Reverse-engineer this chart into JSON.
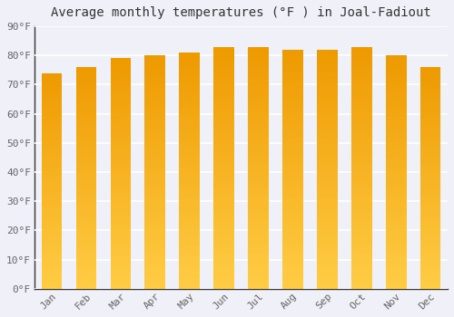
{
  "months": [
    "Jan",
    "Feb",
    "Mar",
    "Apr",
    "May",
    "Jun",
    "Jul",
    "Aug",
    "Sep",
    "Oct",
    "Nov",
    "Dec"
  ],
  "values": [
    74,
    76,
    79,
    80,
    81,
    83,
    83,
    82,
    82,
    83,
    80,
    76
  ],
  "title": "Average monthly temperatures (°F ) in Joal-Fadiout",
  "ylim": [
    0,
    90
  ],
  "yticks": [
    0,
    10,
    20,
    30,
    40,
    50,
    60,
    70,
    80,
    90
  ],
  "ytick_labels": [
    "0°F",
    "10°F",
    "20°F",
    "30°F",
    "40°F",
    "50°F",
    "60°F",
    "70°F",
    "80°F",
    "90°F"
  ],
  "bar_color_top": "#F0A500",
  "bar_color_bottom": "#FFD060",
  "background_color": "#F0F0F8",
  "plot_bg_color": "#F0F0F8",
  "grid_color": "#FFFFFF",
  "title_fontsize": 10,
  "tick_fontsize": 8
}
